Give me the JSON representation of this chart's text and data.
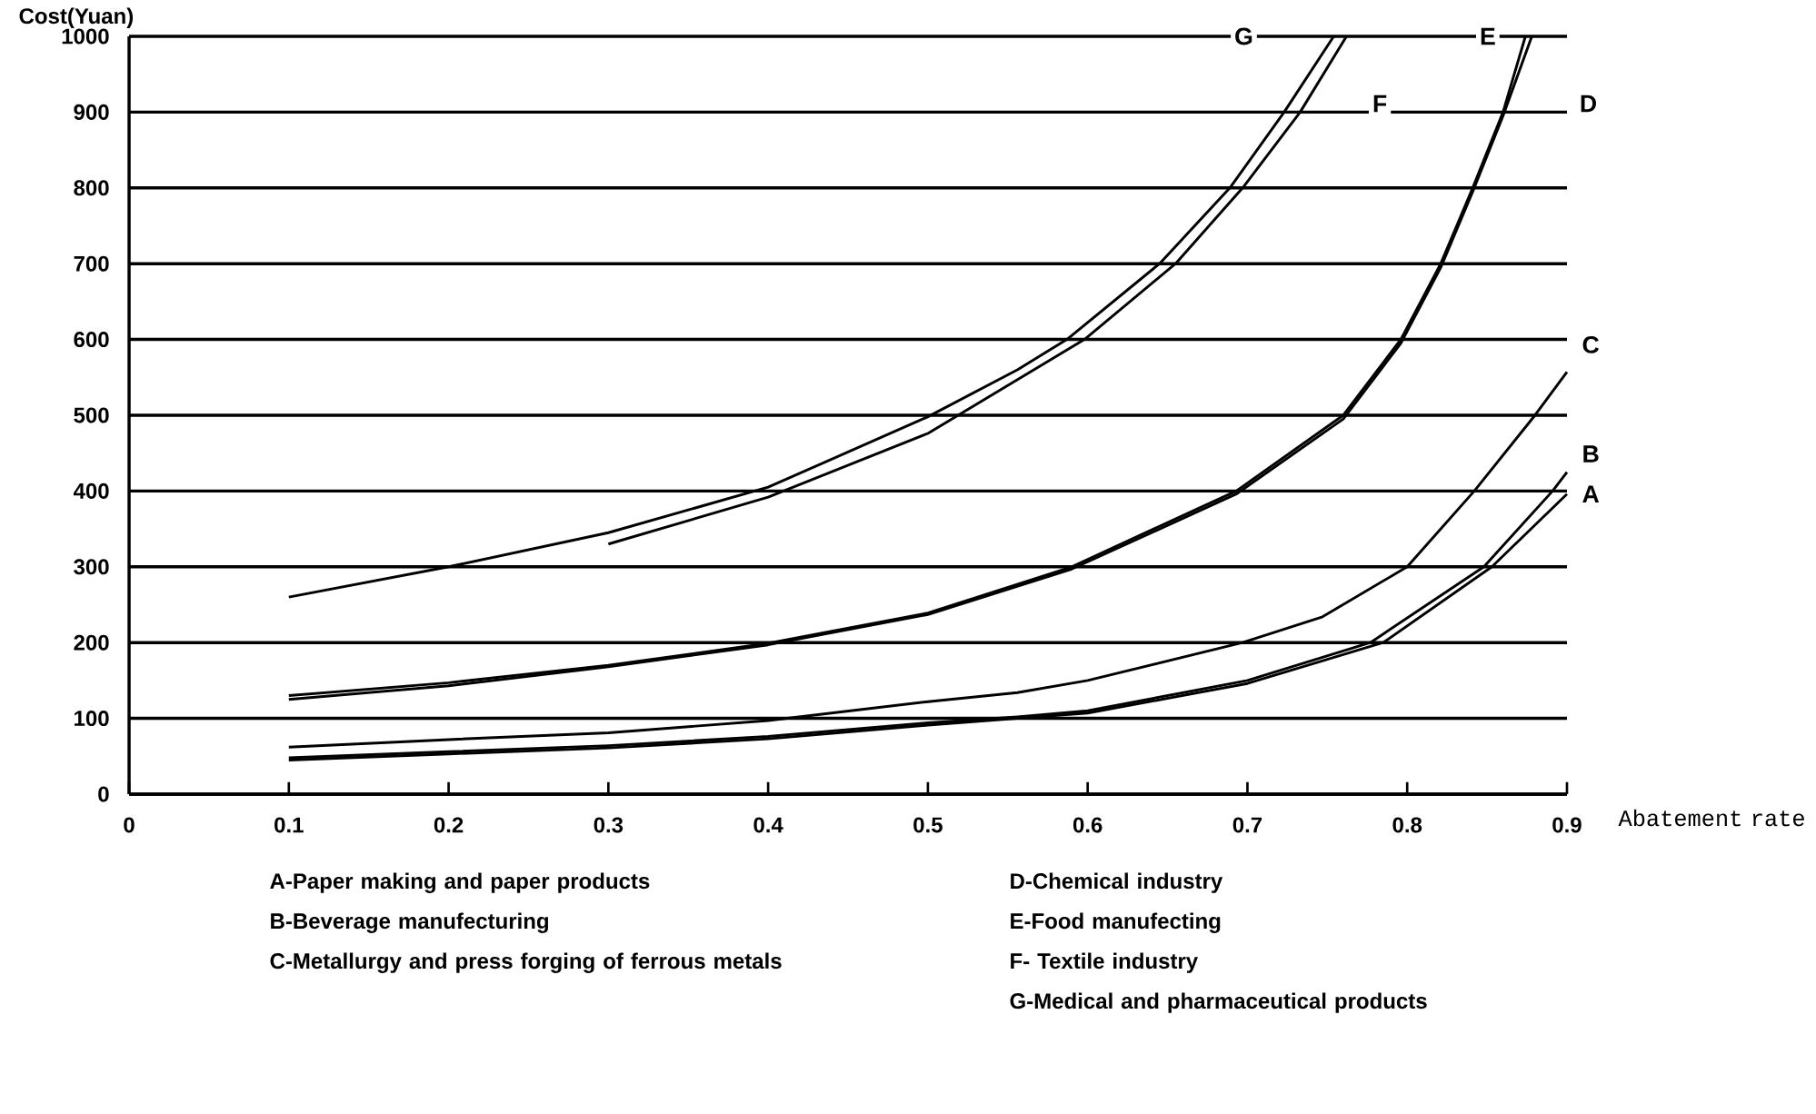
{
  "chart_data": {
    "type": "line",
    "xlabel": "Abatement rate",
    "ylabel": "Cost(Yuan)",
    "xlim": [
      0,
      0.9
    ],
    "ylim": [
      0,
      1000
    ],
    "xticks": [
      0,
      0.1,
      0.2,
      0.3,
      0.4,
      0.5,
      0.6,
      0.7,
      0.8,
      0.9
    ],
    "yticks": [
      0,
      100,
      200,
      300,
      400,
      500,
      600,
      700,
      800,
      900,
      1000
    ],
    "grid": "y",
    "legend": false,
    "marker": "none",
    "line_style": "solid",
    "series": [
      {
        "name": "A",
        "color": "#000000",
        "x": [
          0.1,
          0.2,
          0.3,
          0.4,
          0.5,
          0.556,
          0.6,
          0.7,
          0.785,
          0.853,
          0.9
        ],
        "values": [
          45,
          53,
          61,
          73,
          91,
          100,
          107,
          146,
          200,
          300,
          396
        ]
      },
      {
        "name": "B",
        "color": "#000000",
        "x": [
          0.1,
          0.2,
          0.3,
          0.4,
          0.5,
          0.556,
          0.6,
          0.7,
          0.777,
          0.848,
          0.891,
          0.9
        ],
        "values": [
          48,
          56,
          64,
          76,
          94,
          102,
          110,
          150,
          200,
          300,
          400,
          425
        ]
      },
      {
        "name": "C",
        "color": "#000000",
        "x": [
          0.1,
          0.2,
          0.3,
          0.4,
          0.5,
          0.556,
          0.6,
          0.697,
          0.747,
          0.8,
          0.842,
          0.88,
          0.9
        ],
        "values": [
          62,
          72,
          81,
          97,
          122,
          134,
          150,
          200,
          234,
          300,
          400,
          500,
          557
        ]
      },
      {
        "name": "D",
        "color": "#000000",
        "x": [
          0.1,
          0.2,
          0.3,
          0.4,
          0.5,
          0.59,
          0.693,
          0.76,
          0.796,
          0.821,
          0.841,
          0.86,
          0.878
        ],
        "values": [
          125,
          143,
          168,
          197,
          237,
          297,
          396,
          495,
          595,
          695,
          795,
          895,
          1000
        ]
      },
      {
        "name": "E",
        "color": "#000000",
        "x": [
          0.1,
          0.2,
          0.3,
          0.4,
          0.5,
          0.59,
          0.693,
          0.76,
          0.796,
          0.821,
          0.841,
          0.86,
          0.874
        ],
        "values": [
          130,
          147,
          170,
          199,
          239,
          300,
          400,
          500,
          600,
          700,
          800,
          900,
          1000
        ]
      },
      {
        "name": "F",
        "color": "#000000",
        "x": [
          0.3,
          0.4,
          0.5,
          0.598,
          0.655,
          0.697,
          0.733,
          0.762
        ],
        "values": [
          330,
          392,
          476,
          600,
          700,
          800,
          900,
          1000
        ]
      },
      {
        "name": "G",
        "color": "#000000",
        "x": [
          0.1,
          0.2,
          0.3,
          0.4,
          0.5,
          0.556,
          0.587,
          0.645,
          0.689,
          0.723,
          0.754
        ],
        "values": [
          260,
          300,
          345,
          405,
          498,
          560,
          600,
          700,
          800,
          900,
          1000
        ]
      }
    ],
    "annotations": [
      "A-Paper making and paper products",
      "B-Beverage manufecturing",
      "C-Metallurgy and press forging of ferrous metals",
      "D-Chemical industry",
      "E-Food manufecting",
      "F- Textile industry",
      "G-Medical and pharmaceutical products"
    ]
  }
}
